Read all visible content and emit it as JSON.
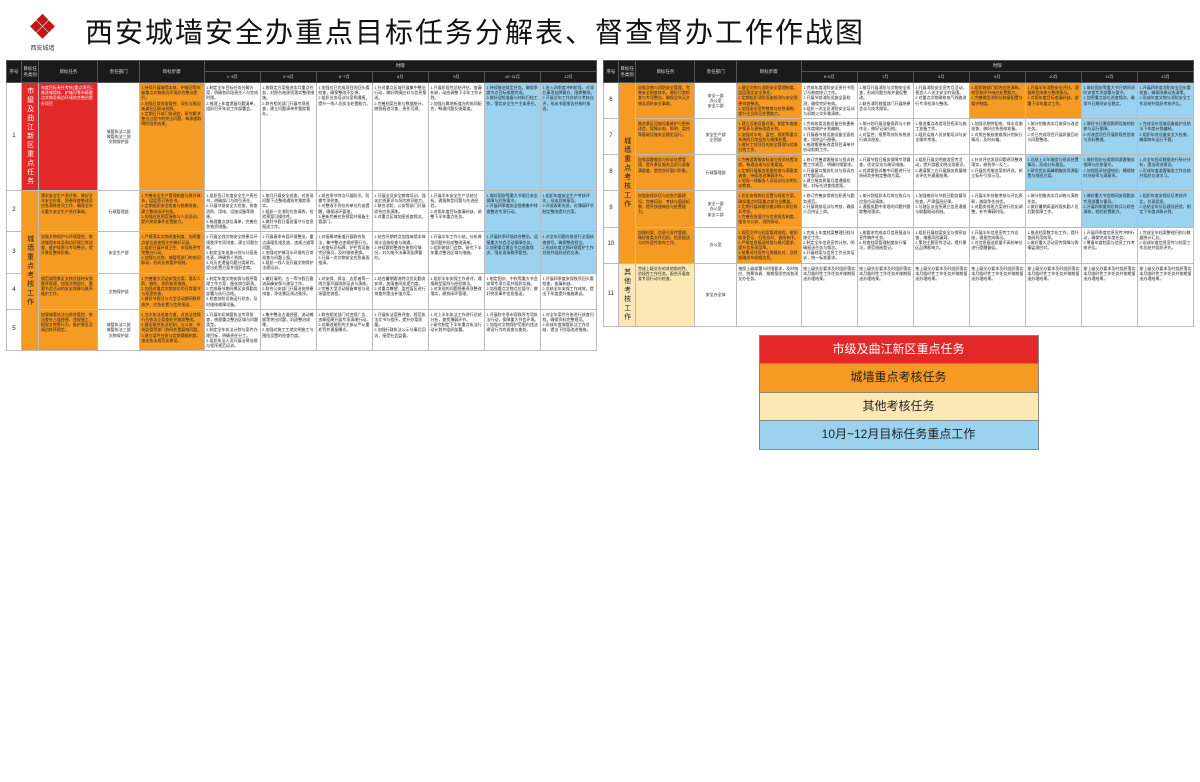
{
  "header": {
    "brand_small": "西安城墙",
    "title": "西安城墙安全办重点目标任务分解表、督查督办工作作战图"
  },
  "colors": {
    "red": "#e22828",
    "orange": "#f59a23",
    "beige": "#fde8b5",
    "blue": "#9ad2f0",
    "white": "#ffffff",
    "header_bg": "#1a1a1a",
    "border": "#bbbbbb"
  },
  "columns": {
    "c1": "序号",
    "c2": "目标任务类别",
    "c3": "目标任务",
    "c4": "责任部门",
    "c5": "目标步骤",
    "c6_group": "时限",
    "c6_subs": [
      "1-3月",
      "4月",
      "5月",
      "6月",
      "7月",
      "8月",
      "9月",
      "10月",
      "11月",
      "12月"
    ]
  },
  "left_table": {
    "rows": [
      {
        "num": "1",
        "cat": {
          "text": "市级及曲江新区重点任务",
          "cls": "c-red",
          "rowspan": 1
        },
        "task": {
          "text": "年度目标责任考核(重点项目)：推进城墙体、护城河等市级重点文物及周边环境综合整治提升项目",
          "cls": "c-red"
        },
        "dept": {
          "text": "城管执法二部\n城管执法三部\n文物保护部",
          "cls": "c-white"
        },
        "step": {
          "text": "1.持续开展城墙本体、护城河等市级重点文物周边环境综合整治提升。\n2.加强日常巡查管控，深化与周边街道社区联动机制。\n3.定期召开部门协调会，研究解决整治过程中的突出问题，每季度取得阶段性成果。",
          "cls": "c-orange"
        },
        "months": [
          {
            "text": "1.制定全年目标任务分解方案，明确各阶段责任人与完成时限。\n2.梳理上年度遗留问题清单，组织召开年初工作部署会。",
            "cls": "c-white"
          },
          {
            "text": "1.按既定方案推进本月重点任务，对照台账逐项落实整改措施。\n2.联合相关部门开展专项巡查，建立问题清单并跟踪督办。",
            "cls": "c-white"
          },
          {
            "text": "1.加强对已完成项目的回头看检查，确保整改不反弹。\n2.组织业务培训与案例通报，提升一线人员执法处置能力。",
            "cls": "c-white"
          },
          {
            "text": "1.针对重点区域开展集中整治行动，做好舆情应对与信息报送。\n2.完善档案台账与数据统计，做到痕迹可查、责任可溯。",
            "cls": "c-white"
          },
          {
            "text": "1.开展阶段性总结评估，查漏补缺，动态调整下半年工作计划。\n2.加强与属地街道办的协同配合，畅通问题反馈渠道。",
            "cls": "c-white"
          },
          {
            "text": "1.持续推进既定任务，确保季度节点目标按期完成。\n2.做好迎检准备与材料归档工作，落实安全生产主体责任。",
            "cls": "c-blue"
          },
          {
            "text": "1.进入四季度冲刺阶段，对滞后事项挂牌督办、限期整改。\n2.开展全年工作总结与考核自评，形成书面报告并按时报送。",
            "cls": "c-blue"
          }
        ]
      },
      {
        "num": "2",
        "cat": {
          "text": "城墙重点考核工作",
          "cls": "c-orange",
          "rowspan": 4
        },
        "task": {
          "text": "落实安全生产责任制，做好全年安全检查、隐患排查整改及应急演练各项工作，确保全年无重大安全生产责任事故。",
          "cls": "c-orange"
        },
        "dept": {
          "text": "行政管理部",
          "cls": "c-white"
        },
        "step": {
          "text": "1.完善安全生产管理制度与责任体系，层层签订责任书。\n2.定期组织安全检查与隐患排查，建立整改闭环台账。\n3.加强应急预案演练与人员培训，提升突发事件处置能力。",
          "cls": "c-orange"
        },
        "months": [
          {
            "text": "1.组织签订年度安全生产责任书，明确部门与岗位责任。\n2.开展节前安全大检查，排查消防、用电、设施设备等隐患。\n3.梳理重点部位清单，完善应急物资储备。",
            "cls": "c-white"
          },
          {
            "text": "1.按月开展安全巡查，对发现问题下达整改通知并跟踪落实。\n2.组织一次消防应急演练，检验预案可操作性。\n3.做好节假日值班值守与信息报送工作。",
            "cls": "c-white"
          },
          {
            "text": "1.结合季节特点开展防汛、防雷专项检查。\n2.对整改不到位的单位约谈提醒，确保闭环管理。\n3.更新完善应急预案并报备主管部门。",
            "cls": "c-white"
          },
          {
            "text": "1.开展全员安全教育培训，强化红线意识与风险辨识能力。\n2.联合消防、公安等部门开展综合应急演练。\n3.对重点区域加密巡查频次。",
            "cls": "c-white"
          },
          {
            "text": "1.开展半年安全生产总结分析，通报典型问题与先进经验。\n2.对照年度目标查漏补缺，调整下半年重点任务。",
            "cls": "c-white"
          },
          {
            "text": "1.做好国庆等重大节假日安全保障与应急值守。\n2.开展四季度安全隐患集中排查整治专项行动。",
            "cls": "c-blue"
          },
          {
            "text": "1.组织年度安全生产考核评估，形成总结报告。\n2.评选表彰先进，对薄弱环节制定整改提升方案。",
            "cls": "c-blue"
          }
        ]
      },
      {
        "num": "3",
        "cat": null,
        "task": {
          "text": "加强文物保护与环境管控，推进城墙本体及周边环境日常巡查、维护保养与专项整治，提升景区整体形象。",
          "cls": "c-orange"
        },
        "dept": {
          "text": "安全生产部",
          "cls": "c-white"
        },
        "step": {
          "text": "1.严格落实文物巡查制度，加密重点部位巡查频次并做好记录。\n2.组织开展环境卫生、市容秩序专项整治行动。\n3.加强与文物、城管等部门的协同联动，形成长效管护机制。",
          "cls": "c-orange"
        },
        "months": [
          {
            "text": "1.开展全线文物安全隐患及环境秩序专项排查，建立问题台账。\n2.制定全年巡查计划与分段责任表，明确到人到岗。\n3.对历史遗留问题分类研判，提出处置方案并组织会商。",
            "cls": "c-white"
          },
          {
            "text": "1.开展春季市容环境整治，重点清理乱堆乱放、违规占道等问题。\n2.加强对护城河水环境的日常巡查与问题上报。\n3.组织一线人员开展文物保护法规培训。",
            "cls": "c-white"
          },
          {
            "text": "1.对接属地街道开展联合执法，集中整治违规经营行为。\n2.检查标识标牌、护栏等设施完好情况，及时维修更换。\n3.开展一次文物安全应急桌面推演。",
            "cls": "c-white"
          },
          {
            "text": "1.结合汛期特点加强城墙本体排水设施检查与疏通。\n2.持续跟踪整改台账销号情况，对久拖不决事项挂牌督办。",
            "cls": "c-white"
          },
          {
            "text": "1.开展半年工作小结，分析典型问题并形成整改清单。\n2.组织跨部门会商，研究下半年重点整治区域与措施。",
            "cls": "c-white"
          },
          {
            "text": "1.开展秋季环境综合整治，迎接重大节会活动保障任务。\n2.加密重点景区节点巡查频次，强化现场秩序管控。",
            "cls": "c-blue"
          },
          {
            "text": "1.对全年问题台账进行全面核查销号，确保整改到位。\n2.形成年度文物环境管护工作总结并组织经验交流。",
            "cls": "c-blue"
          }
        ]
      },
      {
        "num": "4",
        "cat": null,
        "task": {
          "text": "规范城墙景区文物及接待安保秩序管理，加强文物部位、重要节会活动的安全保障与秩序维护工作。",
          "cls": "c-orange"
        },
        "dept": {
          "text": "文物保护部",
          "cls": "c-white"
        },
        "step": {
          "text": "1.完善重大活动安保方案，落实人防、物防、技防各项措施。\n2.加强对重点文物部位的日常值守与巡逻检查。\n3.做好节假日与大型活动期间秩序维护、应急处置与信息报送。",
          "cls": "c-orange"
        },
        "months": [
          {
            "text": "1.制定年度文物安保与秩序管理工作方案，细化岗位职责。\n2.完成春节期间景区安保勤务部署与执行总结。\n3.检查技防设施运行状态，及时维修故障设备。",
            "cls": "c-white"
          },
          {
            "text": "1.做好清明、五一等节假日客流高峰安保与疏导工作。\n2.联合公安部门开展治安隐患排查，净化景区周边秩序。",
            "cls": "c-white"
          },
          {
            "text": "1.对安保、保洁、志愿者等一线力量开展岗前培训与演练。\n2.完善大型活动报备审批与现场管控流程。",
            "cls": "c-white"
          },
          {
            "text": "1.结合暑期客流特点优化勤务安排，加强夜间巡逻力度。\n2.对重点瞭望、监控盲区进行排查并提出补强方案。",
            "cls": "c-white"
          },
          {
            "text": "1.组织半年安保工作讲评，通报典型案例与经验做法。\n2.对发现的问题隐患逐项整改落实，做到闭环管理。",
            "cls": "c-white"
          },
          {
            "text": "1.制定国庆、中秋等重大节会安保专项方案并组织实施。\n2.加强重点文物点位值守，做好突发事件信息报送。",
            "cls": "c-white"
          },
          {
            "text": "1.开展四季度安保秩序回头看检查，查漏补缺。\n2.总结全年安保工作成效，提出下年度提升措施建议。",
            "cls": "c-white"
          }
        ]
      },
      {
        "num": "5",
        "cat": null,
        "task": {
          "text": "加强城管执法与综合管控，依法查处占道经营、违规施工、损毁文物等行为，维护景区及周边秩序稳定。",
          "cls": "c-orange"
        },
        "dept": {
          "text": "城管执法二部\n城管执法三部\n文物保护部",
          "cls": "c-white"
        },
        "step": {
          "text": "1.加大执法巡查力度，对违法违规行为依法立案查处并跟踪整改。\n2.健全联合执法机制，与公安、市场监管等部门协同处置疑难问题。\n3.建立案件台账与定期通报制度，强化执法规范化建设。",
          "cls": "c-orange"
        },
        "months": [
          {
            "text": "1.开展年初城管执法专项排查，梳理重点整治区域与问题类型。\n2.制定全年执法计划与案件办理目标，明确责任分工。\n3.组织执法人员开展法律法规与程序规范培训。",
            "cls": "c-white"
          },
          {
            "text": "1.集中整治占道经营、流动摊贩等突出问题，巩固整治成果。\n2.加强对施工工地文明施工与围挡设置的检查力度。",
            "cls": "c-white"
          },
          {
            "text": "1.联合相关部门对违规广告、违章搭建开展专项清理行动。\n2.对屡改屡犯的主体从严从重处罚并通报曝光。",
            "cls": "c-white"
          },
          {
            "text": "1.开展执法案卷评查，规范执法文书与程序，提升办案质量。\n2.加强行政执法公示与事后回访，接受社会监督。",
            "cls": "c-white"
          },
          {
            "text": "1.对上半年执法工作进行总结分析，查找薄弱环节。\n2.研究制定下半年重点执法行动计划并组织部署。",
            "cls": "c-white"
          },
          {
            "text": "1.开展秋冬季市容秩序专项执法行动，保障重大节会环境。\n2.加强对文物保护范围内违法建设行为的巡查与查处。",
            "cls": "c-white"
          },
          {
            "text": "1.对全年案件台账进行核查归档，确保资料完整规范。\n2.形成年度城管执法工作总结，提出下阶段改进措施。",
            "cls": "c-white"
          }
        ]
      }
    ]
  },
  "right_table": {
    "rows": [
      {
        "num": "6",
        "cat": {
          "text": "城墙重点考核工作",
          "cls": "c-orange",
          "rowspan": 5
        },
        "task": {
          "text": "加强文物与消防安全管理，完善安全制度体系，做好日常检查与专项整治，确保全年无文物及消防安全事故。",
          "cls": "c-orange"
        },
        "dept": {
          "text": "安全一部\n办公室\n安全二部",
          "cls": "c-white"
        },
        "step": {
          "text": "1.健全文物与消防安全管理制度，层层落实安全责任。\n2.定期组织消防设施检测与安全隐患排查整改。\n3.加强安全宣传教育与应急演练，提升全员防范处置能力。",
          "cls": "c-orange"
        },
        "months": [
          {
            "text": "1.完成年度消防安全责任书签订与制度修订工作。\n2.开展节前消防设施全面检测，确保完好有效。\n3.组织一次全员消防安全培训与初期火灾扑救演练。",
            "cls": "c-white"
          },
          {
            "text": "1.按月开展消防与文物安全巡查，形成问题台账并督促整改。\n2.联合消防救援部门开展隐患会诊与技术指导。",
            "cls": "c-white"
          },
          {
            "text": "1.开展消防安全宣传月活动，营造人人关注安全的氛围。\n2.对重点文物建筑电气线路进行专项检测与整改。",
            "cls": "c-white"
          },
          {
            "text": "1.组织跨部门综合应急演练，检验各环节响应处置能力。\n2.完善微型消防站装备配置与值守制度。",
            "cls": "c-orange"
          },
          {
            "text": "1.开展半年消防安全评估，通报典型隐患与整改情况。\n2.对照年度目标查漏补缺，部署下半年重点工作。",
            "cls": "c-orange"
          },
          {
            "text": "1.做好国庆等重大节日期间消防安保专项部署与值守。\n2.加密重点部位巡查频次，确保节日期间安全稳定。",
            "cls": "c-blue"
          },
          {
            "text": "1.开展四季度消防安全回头看检查，确保隐患动态清零。\n2.形成年度文物与消防安全工作总结并组织考核评比。",
            "cls": "c-blue"
          }
        ]
      },
      {
        "num": "7",
        "cat": null,
        "task": {
          "text": "推进景区设施设备维护与更新改造，保障水电、照明、监控等基础设施安全稳定运行。",
          "cls": "c-orange"
        },
        "dept": {
          "text": "安全生产部\n企划部",
          "cls": "c-white"
        },
        "step": {
          "text": "1.建立设施设备台账，制定年度维护保养与更新改造计划。\n2.加强对水电、监控、照明等重点系统的日常巡检与故障处置。\n3.做好工程项目的安全管理与验收归档工作。",
          "cls": "c-orange"
        },
        "months": [
          {
            "text": "1.完成各类设施设备台账更新与年度维护计划编制。\n2.开展春节前设施设备全面检查，排除运行隐患。\n3.梳理需更新改造项目清单并启动前期工作。",
            "cls": "c-white"
          },
          {
            "text": "1.按计划开展设备保养与小修作业，做好记录归档。\n2.对监控、报警等技防系统进行调试校准。",
            "cls": "c-white"
          },
          {
            "text": "1.推进重点改造项目招采与施工准备工作。\n2.组织运维人员技能培训与安全操作考核。",
            "cls": "c-white"
          },
          {
            "text": "1.加强汛期供配电、排水设施巡查，做好应急抢修准备。\n2.对照台账核查维保计划执行情况，及时纠偏。",
            "cls": "c-white"
          },
          {
            "text": "1.按计划推进本月维保与改造任务。\n2.对已完成项目开展质量回访与问题整改。",
            "cls": "c-white"
          },
          {
            "text": "1.做好节日景观照明设施的检修与运行保障。\n2.对改造项目开展阶段性验收与资料整理。",
            "cls": "c-blue"
          },
          {
            "text": "1.完成全年设施设备维护总结与下年度计划编制。\n2.组织年终设备安全大检查，确保跨年运行平稳。",
            "cls": "c-blue"
          }
        ]
      },
      {
        "num": "8",
        "cat": null,
        "task": {
          "text": "加强游客服务与投诉处置管理，提升景区服务品质与游客满意度，塑造良好窗口形象。",
          "cls": "c-orange"
        },
        "dept": {
          "text": "行政管理部",
          "cls": "c-white"
        },
        "step": {
          "text": "1.完善游客服务标准与投诉处置流程，畅通咨询与反馈渠道。\n2.定期开展服务质量检查与满意度调查，持续改进薄弱环节。\n3.加强一线服务人员培训与文明礼仪教育。",
          "cls": "c-orange"
        },
        "months": [
          {
            "text": "1.修订完善游客服务与投诉处置工作规范，明确时限要求。\n2.开展窗口服务礼仪与投诉应对专题培训。\n3.建立服务质量月度通报机制，对标先进查找差距。",
            "cls": "c-white"
          },
          {
            "text": "1.开展节假日服务保障专项督查，优化导览与疏导措施。\n2.对游客投诉集中问题进行分析研判并制定整改方案。",
            "cls": "c-white"
          },
          {
            "text": "1.组织开展文明旅游宣传活动，提升游客文明出游意识。\n2.邀请第三方开展服务质量暗访评估并通报结果。",
            "cls": "c-white"
          },
          {
            "text": "1.针对评估发现问题逐项整改落实，做到举一反三。\n2.开展优秀服务案例评选，树立标杆引领示范。",
            "cls": "c-white"
          },
          {
            "text": "1.总结上半年服务与投诉处置情况，形成分析报告。\n2.研究优化高峰期服务资源配置与排班方案。",
            "cls": "c-blue"
          },
          {
            "text": "1.做好国庆长假期间游客服务保障与应急值守。\n2.加强投诉快速响应，确保按时办结率与满意率。",
            "cls": "c-blue"
          },
          {
            "text": "1.对全年投诉数据进行统计分析，提出改进建议。\n2.形成年度游客服务工作总结并组织交流学习。",
            "cls": "c-blue"
          }
        ]
      },
      {
        "num": "9",
        "cat": null,
        "task": {
          "text": "加强安保队伍与应急力量建设，完善培训、考核与值班机制，提升快速响应与处置能力。",
          "cls": "c-orange"
        },
        "dept": {
          "text": "安全一部\n办公室\n安全二部",
          "cls": "c-white"
        },
        "step": {
          "text": "1.优化安保岗位设置与排班方案，确保重点时段重点部位全覆盖。\n2.定期开展体能技能训练与岗位练兵考核。\n3.完善应急值守与信息报告制度，强化与公安、消防联动。",
          "cls": "c-orange"
        },
        "months": [
          {
            "text": "1.修订完善安保岗位职责与勤务规范。\n2.开展岗前培训与考核，确保人员持证上岗。",
            "cls": "c-white"
          },
          {
            "text": "1.按计划组织本月岗位练兵与应急拉动演练。\n2.通报执勤中发现的问题并跟踪整改落实。",
            "cls": "c-white"
          },
          {
            "text": "1.加强夜间与节假日勤务督导检查，严肃值班纪律。\n2.与辖区派出所建立信息通报与联勤联动机制。",
            "cls": "c-white"
          },
          {
            "text": "1.开展半年技能考核与评比表彰，激励争先创优。\n2.对勤务排班方案进行优化调整，补齐薄弱时段。",
            "cls": "c-white"
          },
          {
            "text": "1.按计划推进本月训练与演练任务。\n2.做好暑期高温时段执勤人员后勤保障工作。",
            "cls": "c-white"
          },
          {
            "text": "1.做好重大节会期间安保勤务专项部署与督导。\n2.开展四季度岗位练兵与综合演练，检验处置能力。",
            "cls": "c-blue"
          },
          {
            "text": "1.组织年度安保队伍考核评比，兑现奖惩。\n2.总结全年队伍建设经验，制定下年度训练计划。",
            "cls": "c-blue"
          }
        ]
      },
      {
        "num": "10",
        "cat": null,
        "task": {
          "text": "加强档案、信息与宣传管理，做好各类文件归档、信息报送与对外宣传发布工作。",
          "cls": "c-orange"
        },
        "dept": {
          "text": "办公室",
          "cls": "c-white"
        },
        "step": {
          "text": "1.规范文件与档案管理流程，做到收发登记、归档及时、查阅有序。\n2.严格信息报送时限与格式要求，提升信息采用率。\n3.统筹对外宣传与舆情应对，及时准确发布权威信息。",
          "cls": "c-orange"
        },
        "months": [
          {
            "text": "1.完成上年度档案整理归档与移交工作。\n2.制定全年信息宣传计划，明确报送任务与频次。\n3.开展档案与信息工作业务培训，统一标准要求。",
            "cls": "c-white"
          },
          {
            "text": "1.按要求完成本月信息报送与宣传稿件任务。\n2.检查档案管理制度执行情况，规范借阅登记。",
            "cls": "c-white"
          },
          {
            "text": "1.组织开展档案安全与保密自查，堵塞风险漏洞。\n2.策划主题宣传活动，提升景区品牌影响力。",
            "cls": "c-white"
          },
          {
            "text": "1.开展半年信息宣传工作总结，通报完成情况。\n2.对信息报送质量不高的单位进行提醒督促。",
            "cls": "c-white"
          },
          {
            "text": "1.推进档案数字化工作，提升查阅利用效率。\n2.做好重大活动宣传保障与舆情监测应对。",
            "cls": "c-white"
          },
          {
            "text": "1.开展四季度信息宣传冲刺行动，确保完成年度任务。\n2.筹备年度档案与信息工作考核评比。",
            "cls": "c-white"
          },
          {
            "text": "1.完成全年档案整理归档与数据统计汇总。\n2.形成年度信息宣传与档案工作总结并组织评先。",
            "cls": "c-white"
          }
        ]
      },
      {
        "num": "11",
        "cat": {
          "text": "其他考核工作",
          "cls": "c-beige",
          "rowspan": 1
        },
        "task": {
          "text": "完成上级交办的其他临时性、阶段性工作任务，配合开展各类专项行动与检查。",
          "cls": "c-beige"
        },
        "dept": {
          "text": "安全办全体",
          "cls": "c-white"
        },
        "step": {
          "text": "按照上级部署与时限要求，及时响应、统筹协调、按期保质完成各项交办任务。",
          "cls": "c-white"
        },
        "months": [
          {
            "text": "按上级交办要求及时组织落实本月临时性工作任务并按期报送办理结果。",
            "cls": "c-white"
          },
          {
            "text": "按上级交办要求及时组织落实本月临时性工作任务并按期报送办理结果。",
            "cls": "c-white"
          },
          {
            "text": "按上级交办要求及时组织落实本月临时性工作任务并按期报送办理结果。",
            "cls": "c-white"
          },
          {
            "text": "按上级交办要求及时组织落实本月临时性工作任务并按期报送办理结果。",
            "cls": "c-white"
          },
          {
            "text": "按上级交办要求及时组织落实本月临时性工作任务并按期报送办理结果。",
            "cls": "c-white"
          },
          {
            "text": "按上级交办要求及时组织落实本月临时性工作任务并按期报送办理结果。",
            "cls": "c-white"
          },
          {
            "text": "按上级交办要求及时组织落实本月临时性工作任务并按期报送办理结果。",
            "cls": "c-white"
          }
        ]
      }
    ]
  },
  "legend": {
    "items": [
      {
        "label": "市级及曲江新区重点任务",
        "cls": "c-red"
      },
      {
        "label": "城墙重点考核任务",
        "cls": "c-orange"
      },
      {
        "label": "其他考核任务",
        "cls": "c-beige"
      },
      {
        "label": "10月~12月目标任务重点工作",
        "cls": "c-blue"
      }
    ]
  }
}
